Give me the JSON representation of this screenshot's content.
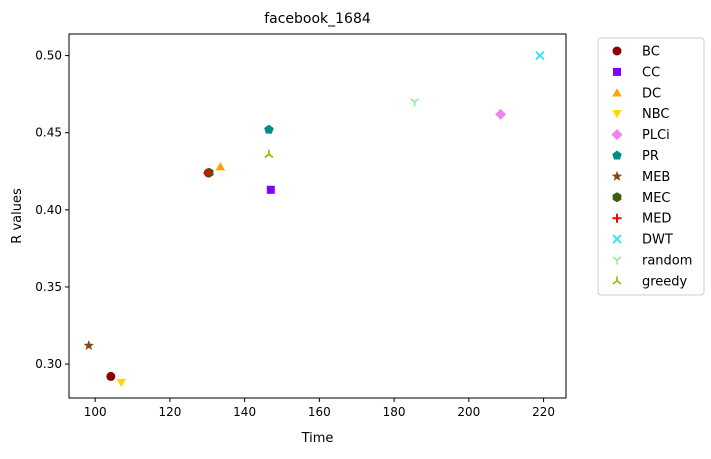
{
  "chart_data": {
    "type": "scatter",
    "title": "facebook_1684",
    "xlabel": "Time",
    "ylabel": "R values",
    "xlim": [
      93,
      226
    ],
    "ylim": [
      0.278,
      0.514
    ],
    "xticks": [
      100,
      120,
      140,
      160,
      180,
      200,
      220
    ],
    "yticks": [
      0.3,
      0.35,
      0.4,
      0.45,
      0.5
    ],
    "xtick_labels": [
      "100",
      "120",
      "140",
      "160",
      "180",
      "200",
      "220"
    ],
    "ytick_labels": [
      "0.30",
      "0.35",
      "0.40",
      "0.45",
      "0.50"
    ],
    "grid": false,
    "legend_position": "outside-right",
    "series": [
      {
        "name": "BC",
        "marker": "circle",
        "color": "#8b0000",
        "points": [
          {
            "x": 104.2,
            "y": 0.292
          },
          {
            "x": 130.3,
            "y": 0.424
          }
        ]
      },
      {
        "name": "CC",
        "marker": "square",
        "color": "#7f00ff",
        "points": [
          {
            "x": 147.0,
            "y": 0.413
          }
        ]
      },
      {
        "name": "DC",
        "marker": "triangle-up",
        "color": "#ffa500",
        "points": [
          {
            "x": 133.5,
            "y": 0.428
          }
        ]
      },
      {
        "name": "NBC",
        "marker": "triangle-down",
        "color": "#ffd700",
        "points": [
          {
            "x": 107.0,
            "y": 0.288
          }
        ]
      },
      {
        "name": "PLCi",
        "marker": "diamond",
        "color": "#ee82ee",
        "points": [
          {
            "x": 208.5,
            "y": 0.462
          }
        ]
      },
      {
        "name": "PR",
        "marker": "pentagon",
        "color": "#008b8b",
        "points": [
          {
            "x": 146.5,
            "y": 0.452
          }
        ]
      },
      {
        "name": "MEB",
        "marker": "star",
        "color": "#8b4513",
        "points": [
          {
            "x": 98.3,
            "y": 0.312
          }
        ]
      },
      {
        "name": "MEC",
        "marker": "hexagon",
        "color": "#3a5f0b",
        "points": [
          {
            "x": 130.5,
            "y": 0.424
          }
        ]
      },
      {
        "name": "MED",
        "marker": "plus",
        "color": "#ff0000",
        "points": [
          {
            "x": 130.2,
            "y": 0.424
          }
        ]
      },
      {
        "name": "DWT",
        "marker": "x",
        "color": "#40e0f0",
        "points": [
          {
            "x": 219.0,
            "y": 0.5
          }
        ]
      },
      {
        "name": "random",
        "marker": "tri-down",
        "color": "#90ee90",
        "points": [
          {
            "x": 185.5,
            "y": 0.47
          }
        ]
      },
      {
        "name": "greedy",
        "marker": "tri-up",
        "color": "#a0b000",
        "points": [
          {
            "x": 146.5,
            "y": 0.436
          }
        ]
      }
    ]
  }
}
